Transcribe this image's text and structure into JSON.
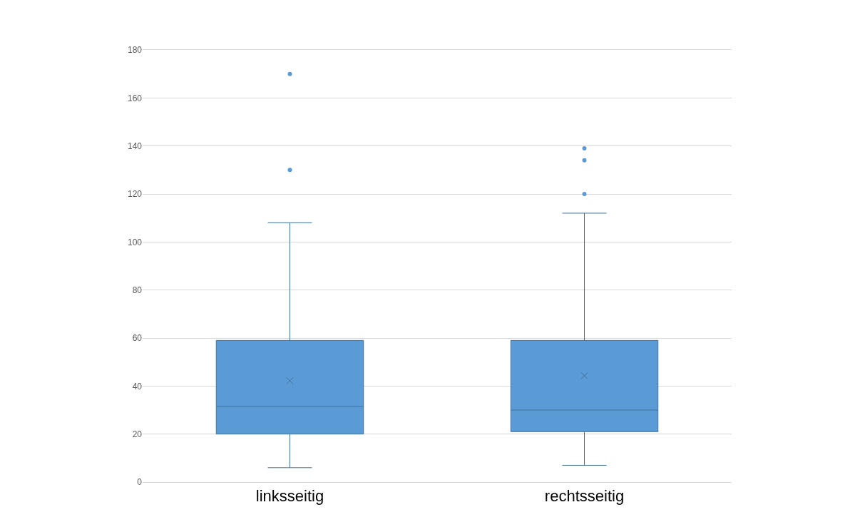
{
  "chart_data": {
    "type": "box",
    "categories": [
      "linksseitig",
      "rechtsseitig"
    ],
    "color": "#5b9bd5",
    "boxes": [
      {
        "low": 6,
        "q1": 20,
        "median": 31.5,
        "q3": 59,
        "high": 108,
        "mean": 42.2,
        "outliers": [
          170,
          130
        ]
      },
      {
        "low": 7,
        "q1": 21,
        "median": 30,
        "q3": 59,
        "high": 112,
        "mean": 44.3,
        "outliers": [
          139,
          134,
          120
        ]
      }
    ],
    "ylim": [
      0,
      180
    ],
    "yticks": [
      0,
      20,
      40,
      60,
      80,
      100,
      120,
      140,
      160,
      180
    ],
    "grid": "y"
  }
}
